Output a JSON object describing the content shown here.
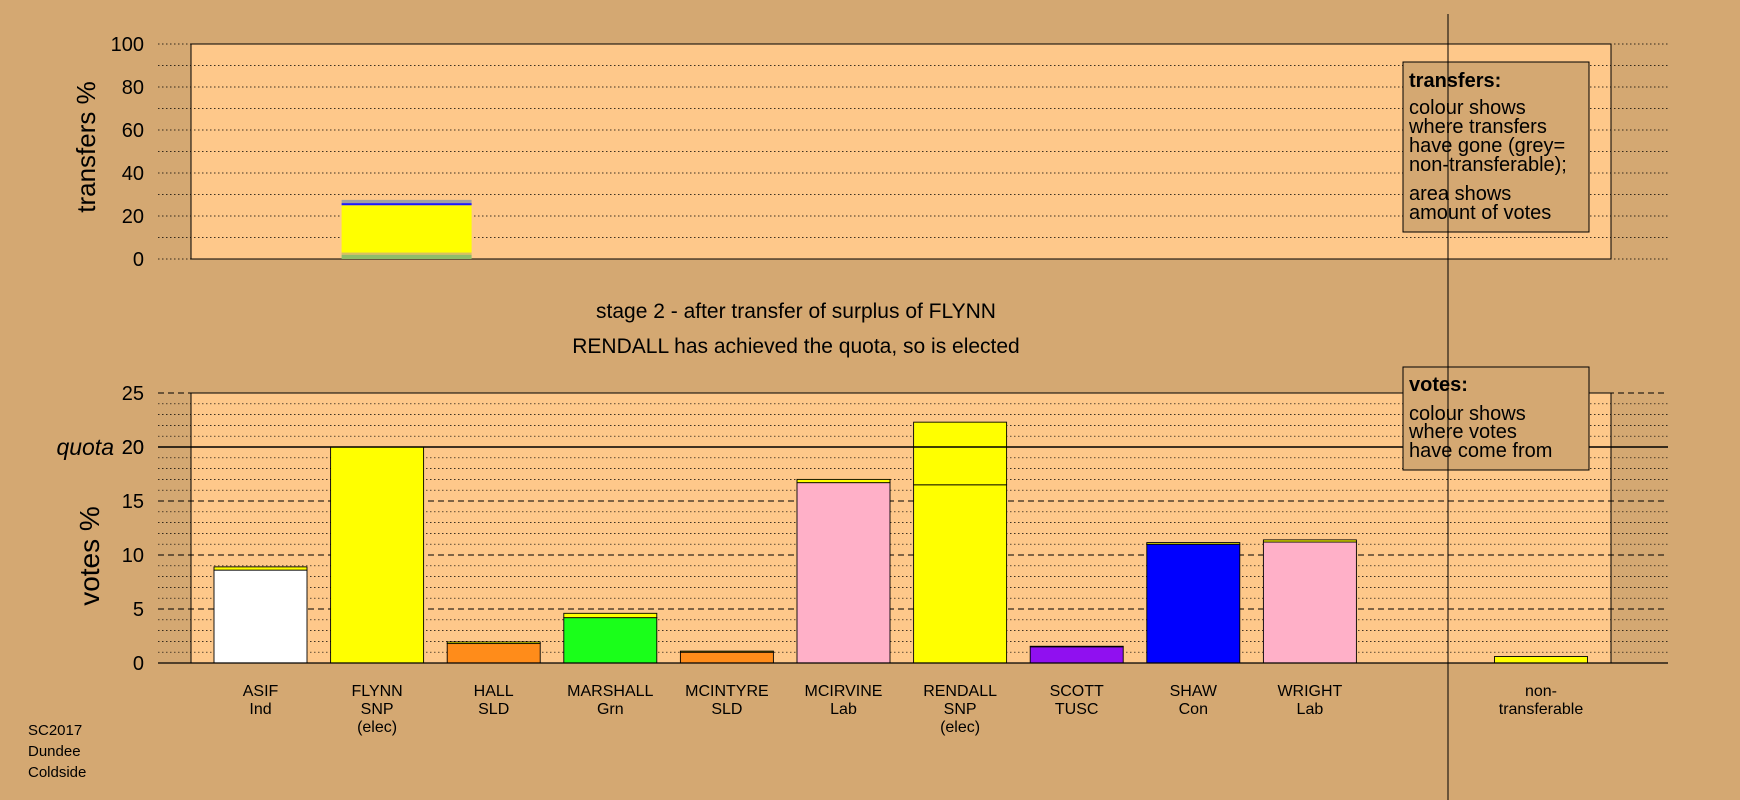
{
  "chart_data": [
    {
      "type": "bar",
      "name": "transfers",
      "ylabel": "transfers %",
      "ylim": [
        0,
        100
      ],
      "yticks": [
        0,
        20,
        40,
        60,
        80,
        100
      ],
      "grid": true,
      "bars": [
        {
          "candidate": "FLYNN",
          "segments": [
            {
              "value": 2,
              "color": "#8fbc6a"
            },
            {
              "value": 1,
              "color": "#d8c060"
            },
            {
              "value": 22,
              "color": "#ffff00"
            },
            {
              "value": 1,
              "color": "#1a1aff"
            },
            {
              "value": 1.5,
              "color": "#a0a0a0"
            }
          ]
        }
      ],
      "legend": {
        "placement": "top-right",
        "title": "transfers:",
        "lines_1": [
          "colour shows",
          "where transfers",
          "have gone (grey=",
          "non-transferable);"
        ],
        "lines_2": [
          "area shows",
          "amount of votes"
        ]
      }
    },
    {
      "type": "bar",
      "name": "votes",
      "title_1": "stage 2 - after transfer of surplus of FLYNN",
      "title_2": "RENDALL has achieved the quota, so is elected",
      "ylabel": "votes %",
      "ylim": [
        0,
        25
      ],
      "yticks": [
        0,
        5,
        10,
        15,
        20,
        25
      ],
      "quota": 20,
      "quota_label": "quota",
      "grid": true,
      "categories": [
        {
          "label": [
            "ASIF",
            "Ind"
          ],
          "segments": [
            {
              "value": 8.6,
              "color": "#ffffff"
            },
            {
              "value": 0.3,
              "color": "#ffff00"
            }
          ]
        },
        {
          "label": [
            "FLYNN",
            "SNP",
            "(elec)"
          ],
          "segments": [
            {
              "value": 20.0,
              "color": "#ffff00"
            }
          ]
        },
        {
          "label": [
            "HALL",
            "SLD"
          ],
          "segments": [
            {
              "value": 1.8,
              "color": "#ff8c1a"
            },
            {
              "value": 0.15,
              "color": "#ffff00"
            }
          ]
        },
        {
          "label": [
            "MARSHALL",
            "Grn"
          ],
          "segments": [
            {
              "value": 4.2,
              "color": "#1aff1a"
            },
            {
              "value": 0.4,
              "color": "#ffff00"
            }
          ]
        },
        {
          "label": [
            "MCINTYRE",
            "SLD"
          ],
          "segments": [
            {
              "value": 1.0,
              "color": "#ff8c1a"
            },
            {
              "value": 0.1,
              "color": "#ffff00"
            }
          ]
        },
        {
          "label": [
            "MCIRVINE",
            "Lab"
          ],
          "segments": [
            {
              "value": 16.7,
              "color": "#ffb0c8"
            },
            {
              "value": 0.3,
              "color": "#ffff00"
            }
          ]
        },
        {
          "label": [
            "RENDALL",
            "SNP",
            "(elec)"
          ],
          "segments": [
            {
              "value": 16.5,
              "color": "#ffff00"
            },
            {
              "value": 5.8,
              "color": "#ffff00"
            }
          ]
        },
        {
          "label": [
            "SCOTT",
            "TUSC"
          ],
          "segments": [
            {
              "value": 1.5,
              "color": "#9010f0"
            },
            {
              "value": 0.05,
              "color": "#ffff00"
            }
          ]
        },
        {
          "label": [
            "SHAW",
            "Con"
          ],
          "segments": [
            {
              "value": 11.0,
              "color": "#0000ff"
            },
            {
              "value": 0.15,
              "color": "#ffff00"
            }
          ]
        },
        {
          "label": [
            "WRIGHT",
            "Lab"
          ],
          "segments": [
            {
              "value": 11.2,
              "color": "#ffb0c8"
            },
            {
              "value": 0.2,
              "color": "#ffff00"
            }
          ]
        }
      ],
      "non_transferable": {
        "label": [
          "non-",
          "transferable"
        ],
        "segments": [
          {
            "value": 0.6,
            "color": "#ffff00"
          }
        ]
      },
      "legend": {
        "placement": "top-right",
        "title": "votes:",
        "lines": [
          "colour shows",
          "where votes",
          "have come from"
        ]
      }
    }
  ],
  "footer": {
    "lines": [
      "SC2017",
      "Dundee",
      "Coldside"
    ]
  }
}
